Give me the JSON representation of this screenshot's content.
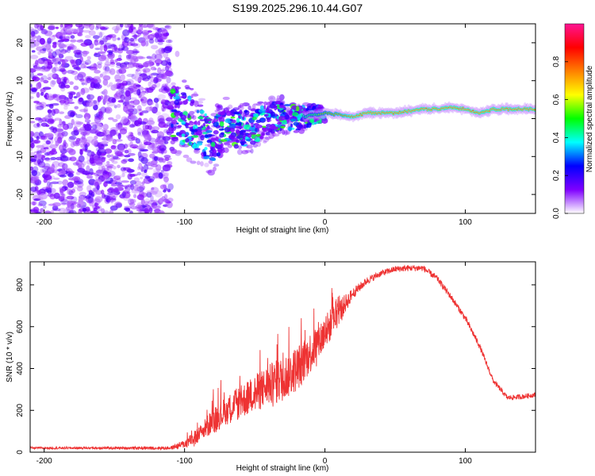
{
  "title": "S199.2025.296.10.44.G07",
  "chart_data": [
    {
      "type": "heatmap",
      "xlabel": "Height of straight line (km)",
      "ylabel": "Frequency (Hz)",
      "xlim": [
        -210,
        150
      ],
      "ylim": [
        -25,
        25
      ],
      "xticks": [
        -200,
        -100,
        0,
        100
      ],
      "yticks": [
        -20,
        -10,
        0,
        10,
        20
      ],
      "colorbar": {
        "label": "Normalized spectral amplitude",
        "range": [
          0,
          1
        ],
        "ticks": [
          "0.0",
          "0.2",
          "0.4",
          "0.6",
          "0.8"
        ],
        "stops": [
          "#ffffff",
          "#7f00ff",
          "#0000ff",
          "#00ffff",
          "#00ff00",
          "#ffff00",
          "#ff8000",
          "#ff0000",
          "#ff1493"
        ]
      },
      "ridge": {
        "x": [
          -110,
          -100,
          -90,
          -80,
          -70,
          -60,
          -50,
          -40,
          -30,
          -20,
          -10,
          0,
          10,
          20,
          30,
          40,
          50,
          60,
          70,
          80,
          90,
          100,
          110,
          120,
          130,
          140,
          150
        ],
        "hz": [
          1.5,
          0,
          -3,
          -6,
          -2,
          -3,
          -2,
          0,
          1,
          0,
          1,
          1.5,
          1,
          0.5,
          1.5,
          1.5,
          1.5,
          2,
          2.5,
          2.5,
          3,
          2.5,
          1.5,
          2.5,
          2.5,
          2.5,
          2.5
        ]
      }
    },
    {
      "type": "line",
      "xlabel": "Height of straight line (km)",
      "ylabel": "SNR (10 * v/v)",
      "xlim": [
        -210,
        150
      ],
      "ylim": [
        0,
        910
      ],
      "xticks": [
        -200,
        -100,
        0,
        100
      ],
      "yticks": [
        0,
        200,
        400,
        600,
        800
      ],
      "color": "#ee3333",
      "series": {
        "x": [
          -210,
          -150,
          -110,
          -100,
          -90,
          -80,
          -70,
          -60,
          -50,
          -40,
          -30,
          -20,
          -10,
          0,
          10,
          20,
          30,
          40,
          50,
          60,
          70,
          80,
          90,
          100,
          110,
          120,
          130,
          140,
          150
        ],
        "y": [
          20,
          20,
          20,
          40,
          80,
          150,
          200,
          240,
          280,
          320,
          350,
          400,
          480,
          570,
          670,
          760,
          820,
          855,
          875,
          880,
          880,
          830,
          740,
          640,
          510,
          340,
          260,
          265,
          275
        ],
        "noise": [
          5,
          6,
          8,
          20,
          40,
          60,
          70,
          80,
          90,
          100,
          110,
          110,
          100,
          90,
          60,
          25,
          18,
          15,
          15,
          15,
          15,
          15,
          15,
          15,
          15,
          12,
          12,
          12,
          12
        ]
      }
    }
  ]
}
